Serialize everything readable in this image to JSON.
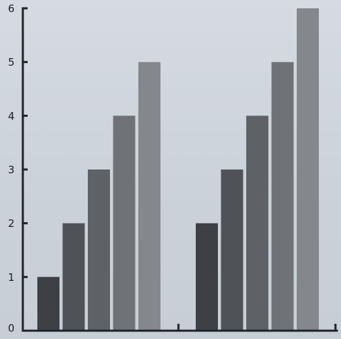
{
  "chart_data": {
    "type": "bar",
    "title": "",
    "xlabel": "",
    "ylabel": "",
    "ylim": [
      0,
      6
    ],
    "yticks": [
      "0",
      "1",
      "2",
      "3",
      "4",
      "5",
      "6"
    ],
    "grid": false,
    "legend": "none",
    "groups": [
      {
        "values": [
          1,
          2,
          3,
          4,
          5
        ]
      },
      {
        "values": [
          2,
          3,
          4,
          5,
          6
        ]
      }
    ],
    "colors": [
      "#3d4146",
      "#4f5358",
      "#5e6267",
      "#6f7378",
      "#84888d"
    ]
  }
}
